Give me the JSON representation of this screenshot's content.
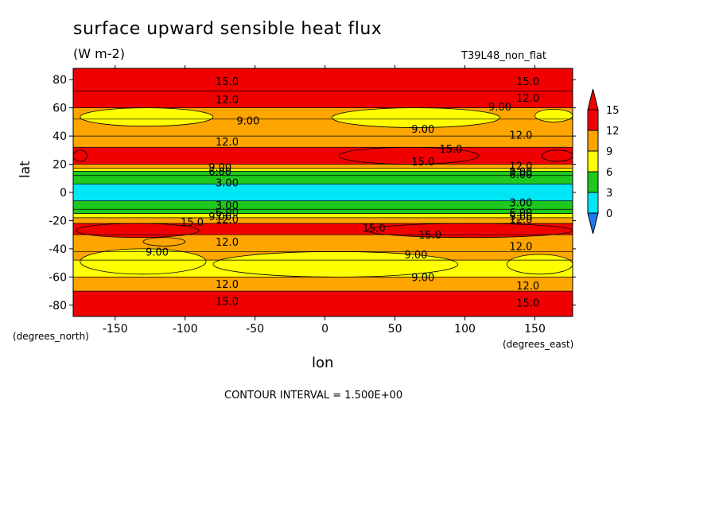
{
  "chart_data": {
    "type": "heatmap",
    "title": "surface upward sensible heat flux",
    "units": "(W m-2)",
    "run_label": "T39L48_non_flat",
    "xlabel": "lon",
    "ylabel": "lat",
    "x_units_note": "(degrees_east)",
    "y_units_note": "(degrees_north)",
    "contour_interval_text": "CONTOUR INTERVAL = 1.500E+00",
    "xlim": [
      -180,
      177
    ],
    "ylim": [
      -88,
      88
    ],
    "x_ticks": [
      -150,
      -100,
      -50,
      0,
      50,
      100,
      150
    ],
    "x_tick_labels": [
      "-150",
      "-100",
      "-50",
      "0",
      "50",
      "100",
      "150"
    ],
    "y_ticks": [
      -80,
      -60,
      -40,
      -20,
      0,
      20,
      40,
      60,
      80
    ],
    "y_tick_labels": [
      "-80",
      "-60",
      "-40",
      "-20",
      "0",
      "20",
      "40",
      "60",
      "80"
    ],
    "colorbar": {
      "levels": [
        0,
        3,
        6,
        9,
        12,
        15
      ],
      "tick_labels": [
        "0",
        "3",
        "6",
        "9",
        "12",
        "15"
      ],
      "colors": [
        "#1e78f0",
        "#00e6f5",
        "#1ec81e",
        "#ffff00",
        "#ffa500",
        "#f00000",
        "#f00000"
      ]
    },
    "bands": [
      {
        "lat": [
          72,
          88
        ],
        "value": 15
      },
      {
        "lat": [
          60,
          72
        ],
        "value": 13
      },
      {
        "lat": [
          52,
          60
        ],
        "value": 11
      },
      {
        "lat": [
          40,
          52
        ],
        "value": 10
      },
      {
        "lat": [
          32,
          40
        ],
        "value": 11
      },
      {
        "lat": [
          20,
          32
        ],
        "value": 13
      },
      {
        "lat": [
          17,
          20
        ],
        "value": 10
      },
      {
        "lat": [
          15,
          17
        ],
        "value": 7
      },
      {
        "lat": [
          12,
          15
        ],
        "value": 5
      },
      {
        "lat": [
          6,
          12
        ],
        "value": 4
      },
      {
        "lat": [
          -6,
          6
        ],
        "value": 2
      },
      {
        "lat": [
          -12,
          -6
        ],
        "value": 4
      },
      {
        "lat": [
          -15,
          -12
        ],
        "value": 5
      },
      {
        "lat": [
          -18,
          -15
        ],
        "value": 7
      },
      {
        "lat": [
          -22,
          -18
        ],
        "value": 10
      },
      {
        "lat": [
          -30,
          -22
        ],
        "value": 13
      },
      {
        "lat": [
          -42,
          -30
        ],
        "value": 11
      },
      {
        "lat": [
          -48,
          -42
        ],
        "value": 10
      },
      {
        "lat": [
          -60,
          -48
        ],
        "value": 8
      },
      {
        "lat": [
          -70,
          -60
        ],
        "value": 11
      },
      {
        "lat": [
          -88,
          -70
        ],
        "value": 15
      }
    ],
    "patches": [
      {
        "lon": [
          -175,
          -80
        ],
        "lat": [
          47,
          60
        ],
        "value": 7.5
      },
      {
        "lon": [
          5,
          125
        ],
        "lat": [
          46,
          60
        ],
        "value": 7.5
      },
      {
        "lon": [
          150,
          177
        ],
        "lat": [
          50,
          59
        ],
        "value": 7.5
      },
      {
        "lon": [
          10,
          110
        ],
        "lat": [
          20,
          32
        ],
        "value": 15.5
      },
      {
        "lon": [
          -180,
          -170
        ],
        "lat": [
          22,
          30
        ],
        "value": 15.5
      },
      {
        "lon": [
          155,
          177
        ],
        "lat": [
          22,
          30
        ],
        "value": 15.5
      },
      {
        "lon": [
          -178,
          -90
        ],
        "lat": [
          -32,
          -22
        ],
        "value": 15.5
      },
      {
        "lon": [
          30,
          177
        ],
        "lat": [
          -32,
          -22
        ],
        "value": 15.5
      },
      {
        "lon": [
          -130,
          -100
        ],
        "lat": [
          -38,
          -32
        ],
        "value": 10
      },
      {
        "lon": [
          -175,
          -85
        ],
        "lat": [
          -58,
          -40
        ],
        "value": 7.5
      },
      {
        "lon": [
          -80,
          95
        ],
        "lat": [
          -60,
          -42
        ],
        "value": 7.5
      },
      {
        "lon": [
          130,
          177
        ],
        "lat": [
          -58,
          -44
        ],
        "value": 7.5
      }
    ],
    "contour_labels": [
      {
        "text": "15.0",
        "lon": -70,
        "lat": 79
      },
      {
        "text": "15.0",
        "lon": 145,
        "lat": 79
      },
      {
        "text": "12.0",
        "lon": -70,
        "lat": 66
      },
      {
        "text": "12.0",
        "lon": 145,
        "lat": 67
      },
      {
        "text": "9.00",
        "lon": 125,
        "lat": 61
      },
      {
        "text": "9.00",
        "lon": -55,
        "lat": 51
      },
      {
        "text": "9.00",
        "lon": 70,
        "lat": 45
      },
      {
        "text": "12.0",
        "lon": 140,
        "lat": 41
      },
      {
        "text": "12.0",
        "lon": -70,
        "lat": 36
      },
      {
        "text": "15.0",
        "lon": 90,
        "lat": 31
      },
      {
        "text": "15.0",
        "lon": 70,
        "lat": 22
      },
      {
        "text": "12.0",
        "lon": 140,
        "lat": 19
      },
      {
        "text": "9.00",
        "lon": -75,
        "lat": 18
      },
      {
        "text": "9.00",
        "lon": 140,
        "lat": 15
      },
      {
        "text": "6.00",
        "lon": -75,
        "lat": 15
      },
      {
        "text": "6.00",
        "lon": 140,
        "lat": 13
      },
      {
        "text": "3.00",
        "lon": -70,
        "lat": 7
      },
      {
        "text": "3.00",
        "lon": 140,
        "lat": -7
      },
      {
        "text": "3.00",
        "lon": -70,
        "lat": -9
      },
      {
        "text": "6.00",
        "lon": -70,
        "lat": -14
      },
      {
        "text": "6.00",
        "lon": 140,
        "lat": -14
      },
      {
        "text": "9.00",
        "lon": -75,
        "lat": -17
      },
      {
        "text": "9.00",
        "lon": 140,
        "lat": -17
      },
      {
        "text": "12.0",
        "lon": -70,
        "lat": -19
      },
      {
        "text": "12.0",
        "lon": 140,
        "lat": -19
      },
      {
        "text": "15.0",
        "lon": -95,
        "lat": -21
      },
      {
        "text": "15.0",
        "lon": 35,
        "lat": -25
      },
      {
        "text": "15.0",
        "lon": 75,
        "lat": -30
      },
      {
        "text": "12.0",
        "lon": -70,
        "lat": -35
      },
      {
        "text": "12.0",
        "lon": 140,
        "lat": -38
      },
      {
        "text": "9.00",
        "lon": -120,
        "lat": -42
      },
      {
        "text": "9.00",
        "lon": 65,
        "lat": -44
      },
      {
        "text": "9.00",
        "lon": 70,
        "lat": -60
      },
      {
        "text": "12.0",
        "lon": -70,
        "lat": -65
      },
      {
        "text": "12.0",
        "lon": 145,
        "lat": -66
      },
      {
        "text": "15.0",
        "lon": -70,
        "lat": -77
      },
      {
        "text": "15.0",
        "lon": 145,
        "lat": -78
      }
    ]
  }
}
